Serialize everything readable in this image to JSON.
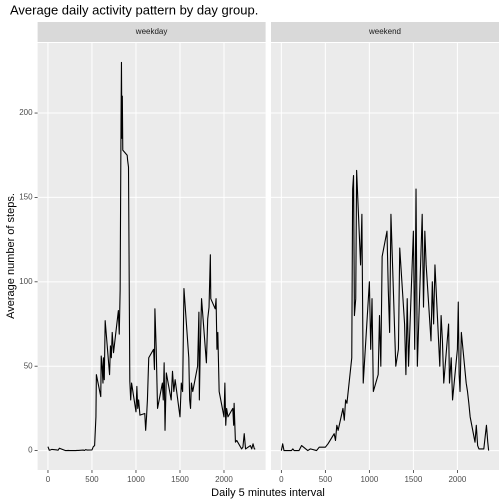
{
  "chart_data": {
    "type": "line",
    "title": "Average daily activity pattern by day group.",
    "x_label": "Daily 5 minutes interval",
    "y_label": "Average number of steps.",
    "xlim": [
      -117.75,
      2472.75
    ],
    "ylim": [
      -11.5,
      241.5
    ],
    "xticks": [
      0,
      500,
      1000,
      1500,
      2000
    ],
    "yticks": [
      0,
      50,
      100,
      150,
      200
    ],
    "grid": true,
    "series": [
      {
        "name": "weekday",
        "color": "#000000",
        "x": [
          0,
          15,
          30,
          45,
          100,
          115,
          130,
          200,
          215,
          230,
          245,
          300,
          315,
          330,
          345,
          400,
          415,
          430,
          445,
          500,
          515,
          530,
          545,
          550,
          600,
          605,
          615,
          625,
          630,
          640,
          650,
          700,
          710,
          720,
          730,
          745,
          800,
          810,
          820,
          830,
          835,
          840,
          845,
          850,
          900,
          905,
          910,
          915,
          930,
          940,
          950,
          1000,
          1010,
          1020,
          1030,
          1045,
          1100,
          1110,
          1120,
          1130,
          1145,
          1200,
          1210,
          1215,
          1230,
          1245,
          1300,
          1310,
          1320,
          1330,
          1345,
          1400,
          1415,
          1430,
          1445,
          1500,
          1515,
          1530,
          1545,
          1600,
          1610,
          1620,
          1630,
          1645,
          1700,
          1715,
          1720,
          1730,
          1745,
          1800,
          1815,
          1830,
          1845,
          1850,
          1900,
          1910,
          1920,
          1930,
          1945,
          2000,
          2010,
          2020,
          2030,
          2045,
          2100,
          2110,
          2115,
          2130,
          2145,
          2200,
          2215,
          2230,
          2245,
          2300,
          2315,
          2330,
          2345,
          2355
        ],
        "values": [
          2.3,
          0.2,
          0.4,
          0.7,
          0.4,
          0.2,
          1.4,
          0,
          0,
          0.1,
          0,
          0,
          0,
          0.1,
          0.1,
          0.3,
          0.1,
          0.6,
          0.3,
          0.4,
          2.3,
          3,
          20,
          45,
          32,
          56,
          50,
          40,
          55,
          42,
          77,
          45,
          62,
          55,
          70,
          58,
          83,
          69,
          95,
          195,
          230,
          185,
          210,
          178,
          175,
          172,
          170,
          168,
          41,
          30,
          40,
          23,
          38,
          25,
          30,
          21,
          22,
          12,
          20,
          30,
          55,
          60,
          48,
          84,
          60,
          25,
          40,
          30,
          52,
          12,
          46,
          30,
          47,
          35,
          42,
          20,
          40,
          35,
          96,
          55,
          30,
          25,
          40,
          35,
          50,
          82,
          30,
          60,
          90,
          52,
          78,
          85,
          116,
          90,
          84,
          90,
          60,
          70,
          35,
          20,
          40,
          15,
          25,
          20,
          25,
          15,
          28,
          5,
          6,
          1,
          2,
          10,
          1,
          3,
          1,
          4,
          1,
          1
        ]
      },
      {
        "name": "weekend",
        "color": "#000000",
        "x": [
          0,
          15,
          30,
          45,
          100,
          115,
          130,
          145,
          200,
          230,
          300,
          330,
          400,
          430,
          500,
          530,
          600,
          615,
          630,
          645,
          700,
          715,
          730,
          745,
          800,
          810,
          820,
          830,
          845,
          855,
          900,
          915,
          930,
          1000,
          1015,
          1030,
          1045,
          1100,
          1115,
          1130,
          1145,
          1200,
          1215,
          1230,
          1245,
          1300,
          1330,
          1345,
          1400,
          1415,
          1430,
          1445,
          1500,
          1515,
          1530,
          1545,
          1600,
          1615,
          1630,
          1645,
          1700,
          1715,
          1730,
          1745,
          1800,
          1815,
          1830,
          1845,
          1900,
          1910,
          1930,
          1945,
          2000,
          2010,
          2020,
          2030,
          2045,
          2100,
          2115,
          2130,
          2145,
          2200,
          2215,
          2230,
          2245,
          2300,
          2315,
          2330,
          2345,
          2355
        ],
        "values": [
          0,
          4,
          0,
          0,
          0,
          0,
          1,
          0,
          0,
          3,
          0,
          1,
          0,
          2,
          2,
          4,
          10,
          6,
          15,
          12,
          25,
          18,
          30,
          28,
          55,
          155,
          163,
          80,
          90,
          166,
          110,
          140,
          40,
          100,
          60,
          90,
          35,
          45,
          80,
          50,
          115,
          130,
          95,
          70,
          140,
          50,
          60,
          120,
          75,
          45,
          90,
          50,
          130,
          60,
          155,
          50,
          140,
          85,
          130,
          110,
          65,
          100,
          75,
          110,
          50,
          80,
          65,
          40,
          75,
          40,
          55,
          30,
          60,
          88,
          45,
          35,
          70,
          40,
          35,
          28,
          20,
          5,
          15,
          3,
          1,
          1,
          8,
          15,
          5,
          0
        ]
      }
    ]
  }
}
